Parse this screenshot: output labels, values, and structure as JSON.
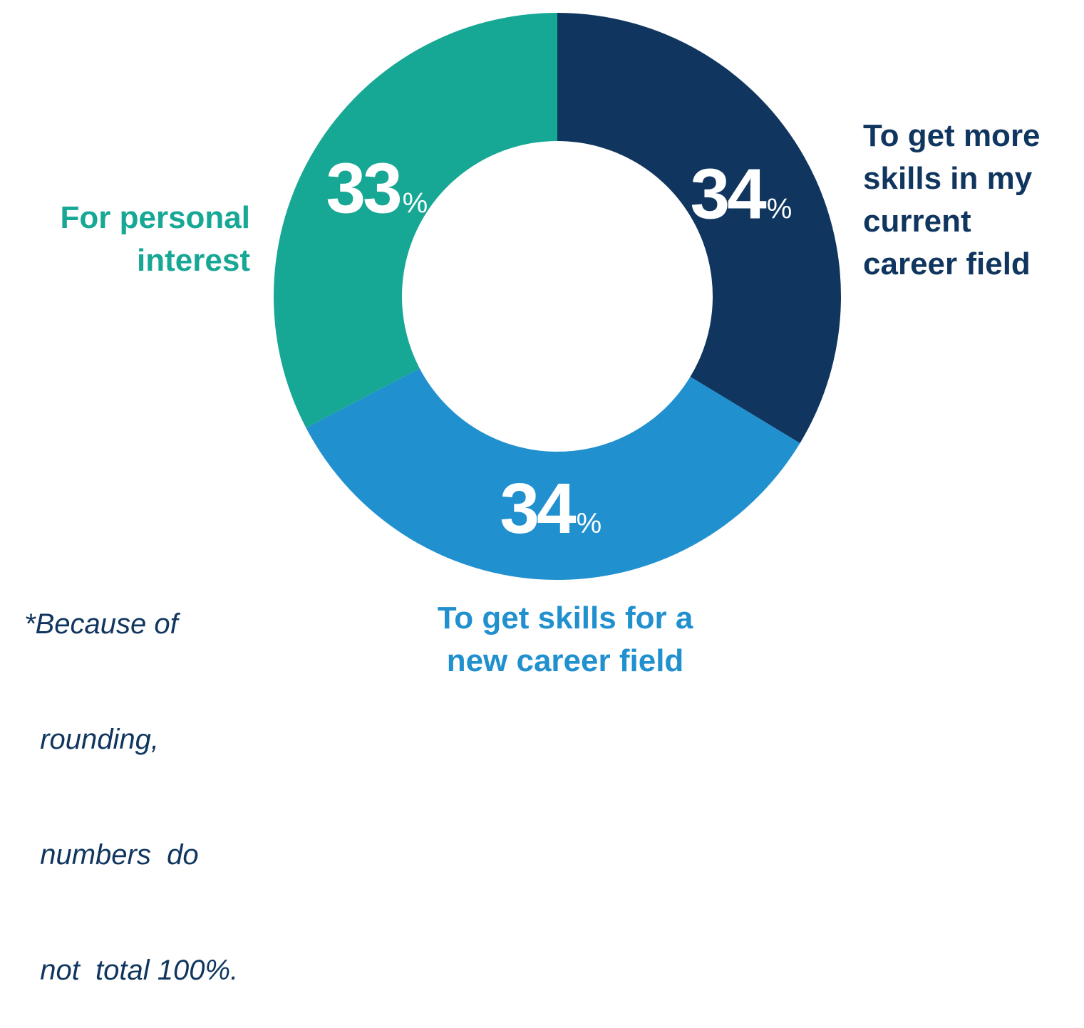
{
  "chart_data": {
    "type": "pie",
    "donut": true,
    "title": "",
    "slices": [
      {
        "label_lines": [
          "To get more",
          "skills in my",
          "current",
          "career field"
        ],
        "value": 34,
        "value_text": "34",
        "unit": "%",
        "color": "#10365f"
      },
      {
        "label_lines": [
          "To get skills for a",
          "new career field"
        ],
        "value": 34,
        "value_text": "34",
        "unit": "%",
        "color": "#2190cf"
      },
      {
        "label_lines": [
          "For personal",
          "interest"
        ],
        "value": 33,
        "value_text": "33",
        "unit": "%",
        "color": "#17a795"
      }
    ],
    "footnote_lines": [
      "*Because of",
      "  rounding,",
      "  numbers  do",
      "  not  total 100%."
    ]
  },
  "colors": {
    "background": "#ffffff",
    "footnote": "#10365f"
  }
}
